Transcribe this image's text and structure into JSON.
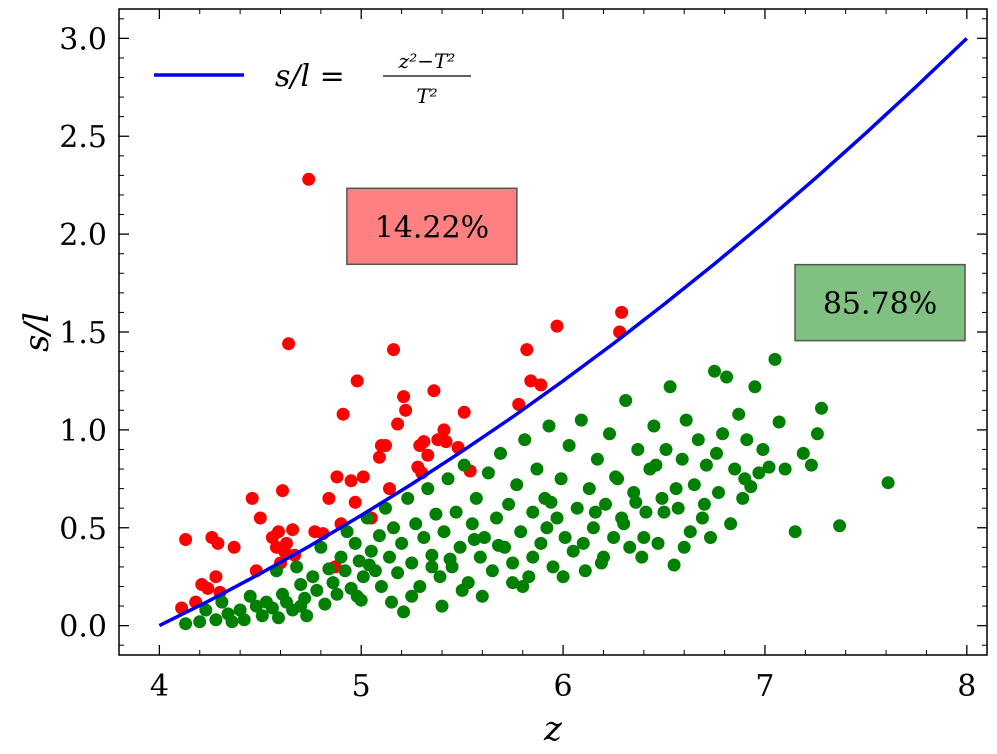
{
  "chart_data": {
    "type": "scatter",
    "xlabel": "z",
    "ylabel": "s/l",
    "xlim": [
      3.8,
      8.1
    ],
    "ylim": [
      -0.15,
      3.15
    ],
    "x_ticks": [
      "4",
      "5",
      "6",
      "7",
      "8"
    ],
    "y_ticks": [
      "0.0",
      "0.5",
      "1.0",
      "1.5",
      "2.0",
      "2.5",
      "3.0"
    ],
    "grid": false,
    "legend_placement": "top-left",
    "curve": {
      "name_main": "s/l =",
      "name_num": "z²−T²",
      "name_den": "T²",
      "color": "#0000ee",
      "x": [
        4.0,
        4.25,
        4.5,
        4.75,
        5.0,
        5.25,
        5.5,
        5.75,
        6.0,
        6.25,
        6.5,
        6.75,
        7.0,
        7.25,
        7.5,
        7.75,
        8.0
      ],
      "y": [
        0.0,
        0.129,
        0.266,
        0.41,
        0.563,
        0.723,
        0.891,
        1.066,
        1.25,
        1.441,
        1.641,
        1.848,
        2.063,
        2.285,
        2.516,
        2.754,
        3.0
      ]
    },
    "series": [
      {
        "color": "#ff0000",
        "points": [
          [
            4.13,
            0.44
          ],
          [
            4.11,
            0.09
          ],
          [
            4.18,
            0.12
          ],
          [
            4.26,
            0.45
          ],
          [
            4.28,
            0.25
          ],
          [
            4.29,
            0.42
          ],
          [
            4.3,
            0.17
          ],
          [
            4.37,
            0.4
          ],
          [
            4.46,
            0.65
          ],
          [
            4.48,
            0.28
          ],
          [
            4.5,
            0.55
          ],
          [
            4.56,
            0.45
          ],
          [
            4.58,
            0.4
          ],
          [
            4.59,
            0.48
          ],
          [
            4.6,
            0.32
          ],
          [
            4.61,
            0.69
          ],
          [
            4.62,
            0.38
          ],
          [
            4.63,
            0.42
          ],
          [
            4.64,
            1.44
          ],
          [
            4.66,
            0.49
          ],
          [
            4.67,
            0.36
          ],
          [
            4.74,
            2.28
          ],
          [
            4.77,
            0.48
          ],
          [
            4.81,
            0.47
          ],
          [
            4.84,
            0.65
          ],
          [
            4.88,
            0.76
          ],
          [
            4.9,
            0.52
          ],
          [
            4.91,
            1.08
          ],
          [
            4.95,
            0.74
          ],
          [
            4.97,
            0.63
          ],
          [
            4.98,
            1.25
          ],
          [
            5.01,
            0.76
          ],
          [
            5.05,
            0.55
          ],
          [
            5.09,
            0.86
          ],
          [
            5.1,
            0.92
          ],
          [
            5.12,
            0.92
          ],
          [
            5.14,
            0.7
          ],
          [
            5.16,
            1.41
          ],
          [
            5.18,
            1.03
          ],
          [
            5.21,
            1.17
          ],
          [
            5.22,
            1.1
          ],
          [
            5.28,
            0.81
          ],
          [
            5.29,
            0.92
          ],
          [
            5.31,
            0.94
          ],
          [
            5.33,
            0.87
          ],
          [
            5.36,
            1.2
          ],
          [
            5.38,
            0.95
          ],
          [
            5.41,
            1.0
          ],
          [
            5.42,
            0.94
          ],
          [
            5.48,
            0.91
          ],
          [
            5.51,
            1.09
          ],
          [
            5.54,
            0.79
          ],
          [
            5.78,
            1.13
          ],
          [
            5.82,
            1.41
          ],
          [
            5.84,
            1.25
          ],
          [
            5.89,
            1.23
          ],
          [
            5.97,
            1.53
          ],
          [
            6.28,
            1.5
          ],
          [
            6.29,
            1.6
          ],
          [
            5.3,
            0.78
          ],
          [
            4.24,
            0.19
          ],
          [
            4.21,
            0.21
          ],
          [
            4.87,
            0.3
          ]
        ]
      },
      {
        "color": "#008000",
        "points": [
          [
            4.13,
            0.01
          ],
          [
            4.2,
            0.02
          ],
          [
            4.23,
            0.08
          ],
          [
            4.28,
            0.03
          ],
          [
            4.31,
            0.12
          ],
          [
            4.34,
            0.06
          ],
          [
            4.36,
            0.02
          ],
          [
            4.4,
            0.08
          ],
          [
            4.42,
            0.03
          ],
          [
            4.45,
            0.15
          ],
          [
            4.48,
            0.1
          ],
          [
            4.51,
            0.05
          ],
          [
            4.53,
            0.12
          ],
          [
            4.56,
            0.09
          ],
          [
            4.58,
            0.28
          ],
          [
            4.59,
            0.04
          ],
          [
            4.61,
            0.16
          ],
          [
            4.63,
            0.12
          ],
          [
            4.66,
            0.08
          ],
          [
            4.68,
            0.3
          ],
          [
            4.7,
            0.21
          ],
          [
            4.72,
            0.14
          ],
          [
            4.73,
            0.05
          ],
          [
            4.76,
            0.25
          ],
          [
            4.78,
            0.18
          ],
          [
            4.8,
            0.4
          ],
          [
            4.82,
            0.11
          ],
          [
            4.84,
            0.29
          ],
          [
            4.86,
            0.22
          ],
          [
            4.88,
            0.16
          ],
          [
            4.9,
            0.35
          ],
          [
            4.92,
            0.28
          ],
          [
            4.93,
            0.48
          ],
          [
            4.95,
            0.19
          ],
          [
            4.97,
            0.42
          ],
          [
            4.99,
            0.33
          ],
          [
            5.01,
            0.25
          ],
          [
            5.03,
            0.55
          ],
          [
            5.05,
            0.38
          ],
          [
            5.07,
            0.28
          ],
          [
            5.09,
            0.46
          ],
          [
            5.1,
            0.2
          ],
          [
            5.12,
            0.6
          ],
          [
            5.14,
            0.35
          ],
          [
            5.16,
            0.5
          ],
          [
            5.18,
            0.27
          ],
          [
            5.2,
            0.42
          ],
          [
            5.21,
            0.07
          ],
          [
            5.23,
            0.65
          ],
          [
            5.25,
            0.32
          ],
          [
            5.27,
            0.52
          ],
          [
            5.29,
            0.2
          ],
          [
            5.31,
            0.45
          ],
          [
            5.33,
            0.7
          ],
          [
            5.35,
            0.36
          ],
          [
            5.37,
            0.57
          ],
          [
            5.39,
            0.25
          ],
          [
            5.41,
            0.48
          ],
          [
            5.43,
            0.75
          ],
          [
            5.45,
            0.3
          ],
          [
            5.47,
            0.58
          ],
          [
            5.49,
            0.4
          ],
          [
            5.51,
            0.82
          ],
          [
            5.53,
            0.22
          ],
          [
            5.55,
            0.52
          ],
          [
            5.57,
            0.65
          ],
          [
            5.59,
            0.35
          ],
          [
            5.61,
            0.45
          ],
          [
            5.63,
            0.78
          ],
          [
            5.65,
            0.28
          ],
          [
            5.67,
            0.55
          ],
          [
            5.69,
            0.88
          ],
          [
            5.71,
            0.4
          ],
          [
            5.73,
            0.62
          ],
          [
            5.75,
            0.32
          ],
          [
            5.77,
            0.72
          ],
          [
            5.79,
            0.48
          ],
          [
            5.81,
            0.95
          ],
          [
            5.83,
            0.25
          ],
          [
            5.85,
            0.58
          ],
          [
            5.87,
            0.8
          ],
          [
            5.89,
            0.42
          ],
          [
            5.91,
            0.65
          ],
          [
            5.93,
            1.02
          ],
          [
            5.95,
            0.3
          ],
          [
            5.97,
            0.55
          ],
          [
            5.99,
            0.75
          ],
          [
            6.01,
            0.45
          ],
          [
            6.03,
            0.92
          ],
          [
            6.05,
            0.38
          ],
          [
            6.07,
            0.6
          ],
          [
            6.09,
            1.05
          ],
          [
            6.11,
            0.28
          ],
          [
            6.13,
            0.7
          ],
          [
            6.15,
            0.5
          ],
          [
            6.17,
            0.85
          ],
          [
            6.19,
            0.32
          ],
          [
            6.21,
            0.62
          ],
          [
            6.23,
            0.98
          ],
          [
            6.25,
            0.45
          ],
          [
            6.27,
            0.75
          ],
          [
            6.29,
            0.55
          ],
          [
            6.31,
            1.15
          ],
          [
            6.33,
            0.4
          ],
          [
            6.35,
            0.68
          ],
          [
            6.37,
            0.9
          ],
          [
            6.39,
            0.35
          ],
          [
            6.41,
            0.58
          ],
          [
            6.43,
            0.8
          ],
          [
            6.45,
            1.02
          ],
          [
            6.47,
            0.42
          ],
          [
            6.49,
            0.65
          ],
          [
            6.51,
            0.9
          ],
          [
            6.53,
            1.22
          ],
          [
            6.55,
            0.31
          ],
          [
            6.57,
            0.6
          ],
          [
            6.59,
            0.85
          ],
          [
            6.61,
            1.05
          ],
          [
            6.63,
            0.48
          ],
          [
            6.65,
            0.72
          ],
          [
            6.67,
            0.95
          ],
          [
            6.69,
            0.55
          ],
          [
            6.71,
            0.82
          ],
          [
            6.73,
            0.45
          ],
          [
            6.75,
            1.3
          ],
          [
            6.77,
            0.68
          ],
          [
            6.79,
            0.98
          ],
          [
            6.81,
            1.27
          ],
          [
            6.83,
            0.52
          ],
          [
            6.85,
            0.8
          ],
          [
            6.87,
            1.08
          ],
          [
            6.89,
            0.65
          ],
          [
            6.91,
            0.95
          ],
          [
            6.93,
            0.71
          ],
          [
            6.95,
            1.22
          ],
          [
            6.97,
            0.78
          ],
          [
            6.99,
            0.9
          ],
          [
            7.02,
            0.81
          ],
          [
            7.05,
            1.36
          ],
          [
            7.07,
            1.04
          ],
          [
            7.1,
            0.8
          ],
          [
            7.15,
            0.48
          ],
          [
            7.19,
            0.88
          ],
          [
            7.23,
            0.82
          ],
          [
            7.26,
            0.98
          ],
          [
            7.28,
            1.11
          ],
          [
            7.37,
            0.51
          ],
          [
            7.61,
            0.73
          ],
          [
            5.0,
            0.13
          ],
          [
            5.4,
            0.1
          ],
          [
            5.6,
            0.15
          ],
          [
            5.8,
            0.2
          ],
          [
            6.0,
            0.25
          ],
          [
            6.2,
            0.35
          ],
          [
            6.4,
            0.45
          ],
          [
            6.6,
            0.4
          ],
          [
            5.25,
            0.15
          ],
          [
            5.5,
            0.18
          ],
          [
            5.75,
            0.22
          ],
          [
            5.15,
            0.12
          ],
          [
            5.35,
            0.3
          ],
          [
            5.85,
            0.35
          ],
          [
            6.1,
            0.42
          ],
          [
            6.3,
            0.52
          ],
          [
            6.5,
            0.58
          ],
          [
            6.7,
            0.62
          ],
          [
            6.9,
            0.75
          ],
          [
            4.98,
            0.15
          ],
          [
            5.44,
            0.34
          ],
          [
            5.68,
            0.41
          ],
          [
            5.92,
            0.5
          ],
          [
            6.16,
            0.58
          ],
          [
            6.36,
            0.63
          ],
          [
            6.56,
            0.7
          ],
          [
            6.76,
            0.88
          ],
          [
            4.7,
            0.1
          ],
          [
            5.04,
            0.31
          ],
          [
            5.56,
            0.44
          ],
          [
            5.94,
            0.63
          ],
          [
            6.26,
            0.76
          ],
          [
            6.46,
            0.82
          ]
        ]
      }
    ],
    "annotations": [
      {
        "text": "14.22%",
        "x": 5.35,
        "y": 2.04,
        "fill": "#ff8080"
      },
      {
        "text": "85.78%",
        "x": 7.57,
        "y": 1.65,
        "fill": "#80c080"
      }
    ]
  }
}
